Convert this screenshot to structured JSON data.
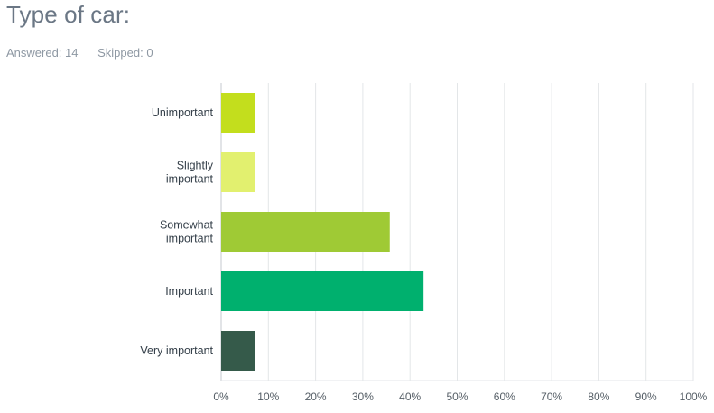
{
  "question": {
    "title": "Type of car:",
    "answered": "Answered: 14",
    "skipped": "Skipped: 0"
  },
  "colors": {
    "grid": "#e3e6e8",
    "axis": "#c4cacf",
    "label_text": "#333e48",
    "tick_text": "#555e66"
  },
  "chart_data": {
    "type": "bar",
    "orientation": "horizontal",
    "categories": [
      [
        "Unimportant"
      ],
      [
        "Slightly",
        "important"
      ],
      [
        "Somewhat",
        "important"
      ],
      [
        "Important"
      ],
      [
        "Very important"
      ]
    ],
    "values": [
      7.14,
      7.14,
      35.71,
      42.86,
      7.14
    ],
    "bar_colors": [
      "#c3de1d",
      "#e2f06f",
      "#9fca35",
      "#00b06e",
      "#355a4a"
    ],
    "xlim": [
      0,
      100
    ],
    "x_ticks": [
      0,
      10,
      20,
      30,
      40,
      50,
      60,
      70,
      80,
      90,
      100
    ],
    "x_tick_labels": [
      "0%",
      "10%",
      "20%",
      "30%",
      "40%",
      "50%",
      "60%",
      "70%",
      "80%",
      "90%",
      "100%"
    ],
    "grid": true,
    "title": "",
    "xlabel": "",
    "ylabel": ""
  }
}
